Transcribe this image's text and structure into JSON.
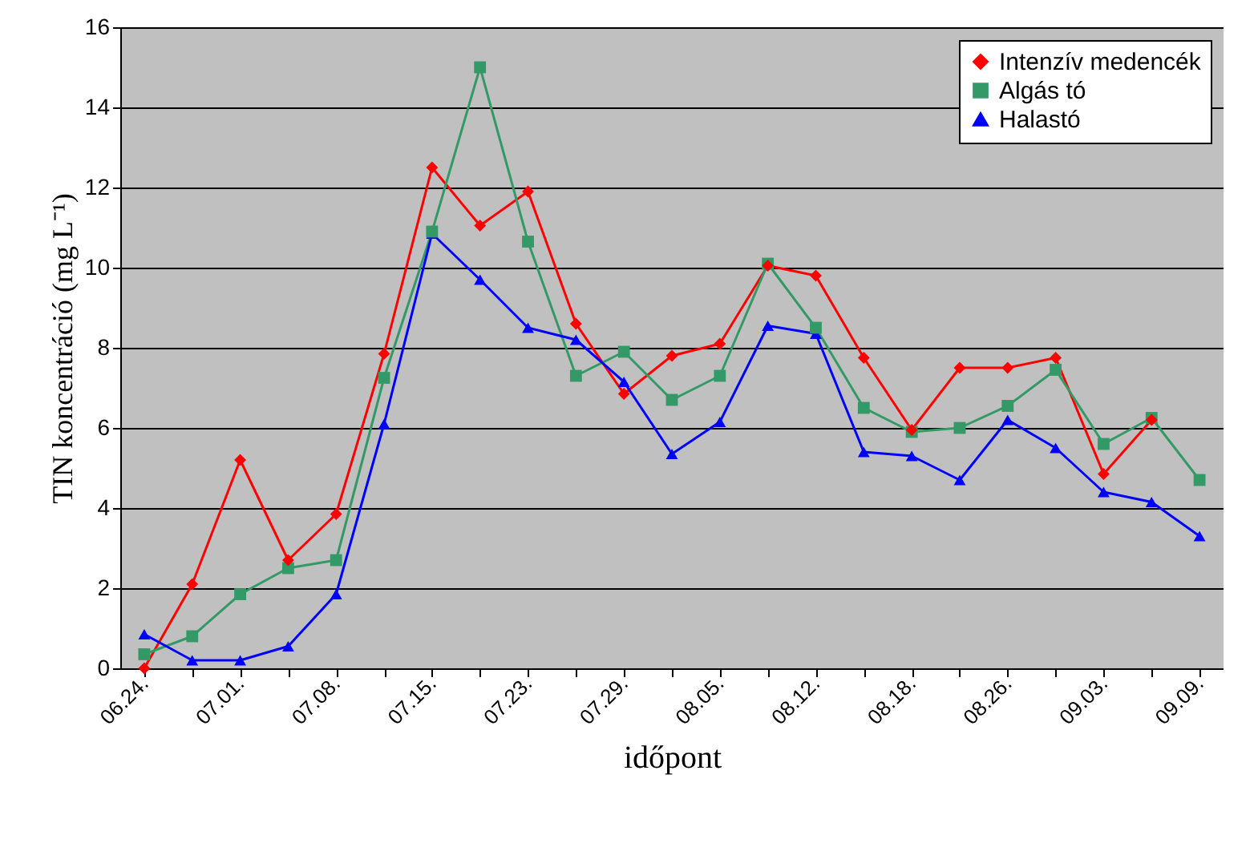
{
  "chart_data": {
    "type": "line",
    "xlabel": "időpont",
    "ylabel": "TIN koncentráció (mg L⁻¹)",
    "categories": [
      "06.24.",
      null,
      "07.01.",
      null,
      "07.08.",
      null,
      "07.15.",
      null,
      "07.23.",
      null,
      "07.29.",
      null,
      "08.05.",
      null,
      "08.12.",
      null,
      "08.18.",
      null,
      "08.26.",
      null,
      "09.03.",
      null,
      "09.09."
    ],
    "series": [
      {
        "name": "Intenzív medencék",
        "color": "#ff0000",
        "marker": "diamond",
        "values": [
          0,
          2.1,
          5.2,
          2.7,
          3.85,
          7.85,
          12.5,
          11.05,
          11.9,
          8.6,
          6.85,
          7.8,
          8.1,
          10.05,
          9.8,
          7.75,
          5.95,
          7.5,
          7.5,
          7.75,
          4.85,
          6.2,
          null
        ]
      },
      {
        "name": "Algás tó",
        "color": "#339966",
        "marker": "square",
        "values": [
          0.35,
          0.8,
          1.85,
          2.5,
          2.7,
          7.25,
          10.9,
          15.0,
          10.65,
          7.3,
          7.9,
          6.7,
          7.3,
          10.1,
          8.5,
          6.5,
          5.9,
          6.0,
          6.55,
          7.45,
          5.6,
          6.25,
          4.7
        ]
      },
      {
        "name": "Halastó",
        "color": "#0000ff",
        "marker": "triangle",
        "values": [
          0.85,
          0.2,
          0.2,
          0.55,
          1.85,
          6.1,
          10.85,
          9.7,
          8.5,
          8.2,
          7.15,
          5.35,
          6.15,
          8.55,
          8.35,
          5.4,
          5.3,
          4.7,
          6.2,
          5.5,
          4.4,
          4.15,
          3.3
        ]
      }
    ],
    "ylim": [
      0,
      16
    ],
    "yticks": [
      0,
      2,
      4,
      6,
      8,
      10,
      12,
      14,
      16
    ],
    "grid": "y",
    "legend": "top right"
  }
}
